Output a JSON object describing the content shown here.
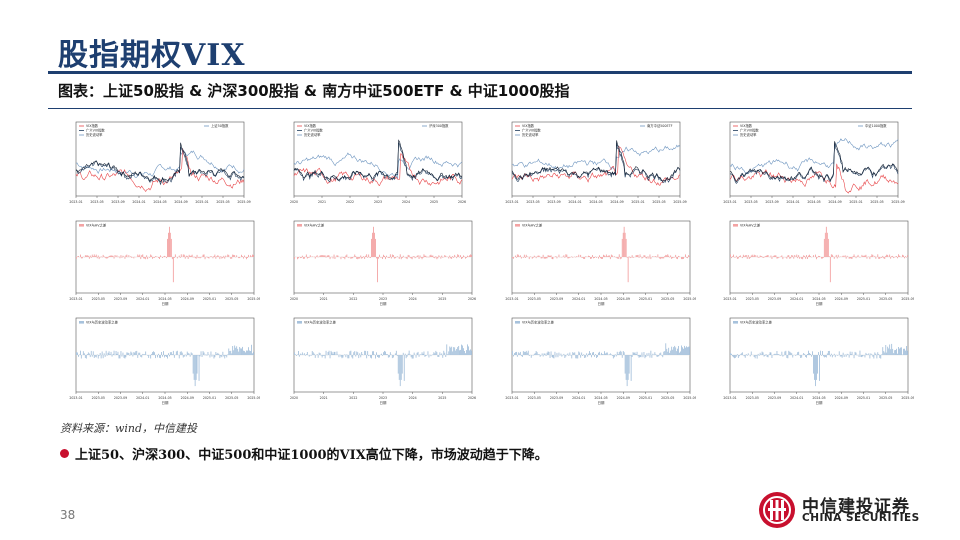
{
  "header": {
    "title": "股指期权VIX",
    "subtitle": "图表：上证50股指 & 沪深300股指 & 南方中证500ETF & 中证1000股指"
  },
  "colors": {
    "accent": "#1e3f70",
    "red": "#e8474a",
    "navy": "#1f3b5c",
    "blue": "#6f96c0",
    "pinkBar": "#f3a3a3",
    "blueBar": "#a7c2dc",
    "brand": "#c8102e"
  },
  "panels": [
    {
      "legend_top": [
        "VIX指数",
        "广义VIX指数",
        "历史波动率"
      ],
      "legend_right": "上证50指数",
      "x_ticks": [
        "2023-01",
        "2023-05",
        "2023-09",
        "2024-01",
        "2024-05",
        "2024-09",
        "2025-01",
        "2025-05",
        "2025-09"
      ],
      "mid_legend": "VIX与HV之差",
      "bot_legend": "VIX与历史波动率之差"
    },
    {
      "legend_top": [
        "VIX指数",
        "广义VIX指数",
        "历史波动率"
      ],
      "legend_right": "沪深300指数",
      "x_ticks": [
        "2020",
        "2021",
        "2022",
        "2023",
        "2024",
        "2025",
        "2026"
      ],
      "mid_legend": "VIX与HV之差",
      "bot_legend": "VIX与历史波动率之差"
    },
    {
      "legend_top": [
        "VIX指数",
        "广义VIX指数",
        "历史波动率"
      ],
      "legend_right": "南方中证500ETF",
      "x_ticks": [
        "2023-01",
        "2023-05",
        "2023-09",
        "2024-01",
        "2024-05",
        "2024-09",
        "2025-01",
        "2025-05",
        "2025-09"
      ],
      "mid_legend": "VIX与HV之差",
      "bot_legend": "VIX与历史波动率之差"
    },
    {
      "legend_top": [
        "VIX指数",
        "广义VIX指数",
        "历史波动率"
      ],
      "legend_right": "中证1000指数",
      "x_ticks": [
        "2023-01",
        "2023-05",
        "2023-09",
        "2024-01",
        "2024-05",
        "2024-09",
        "2025-01",
        "2025-05",
        "2025-09"
      ],
      "mid_legend": "VIX与HV之差",
      "bot_legend": "VIX与历史波动率之差"
    }
  ],
  "xlabel": "日期",
  "source": "资料来源：wind，中信建投",
  "bullet": "上证50、沪深300、中证500和中证1000的VIX高位下降，市场波动趋于下降。",
  "page_number": "38",
  "logo": {
    "cn": "中信建投证券",
    "en": "CHINA SECURITIES"
  }
}
